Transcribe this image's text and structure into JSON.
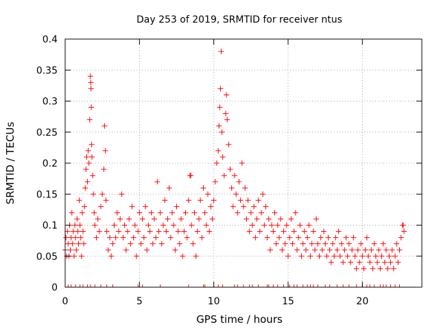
{
  "chart_data": {
    "type": "scatter",
    "title": "Day 253 of 2019, SRMTID for receiver ntus",
    "xlabel": "GPS time / hours",
    "ylabel": "SRMTID / TECUs",
    "xlim": [
      0,
      24
    ],
    "ylim": [
      0,
      0.4
    ],
    "xticks": [
      0,
      5,
      10,
      15,
      20
    ],
    "xtick_labels": [
      "0",
      "5",
      "10",
      "15",
      "20"
    ],
    "yticks": [
      0,
      0.05,
      0.1,
      0.15,
      0.2,
      0.25,
      0.3,
      0.35,
      0.4
    ],
    "ytick_labels": [
      "0",
      "0.05",
      "0.1",
      "0.15",
      "0.2",
      "0.25",
      "0.3",
      "0.35",
      "0.4"
    ],
    "grid": true,
    "marker": "plus",
    "color": "#ff0000",
    "series": [
      {
        "name": "SRMTID",
        "points": [
          [
            0.0,
            0.06
          ],
          [
            0.05,
            0.08
          ],
          [
            0.1,
            0.05
          ],
          [
            0.15,
            0.09
          ],
          [
            0.2,
            0.07
          ],
          [
            0.25,
            0.05
          ],
          [
            0.3,
            0.1
          ],
          [
            0.35,
            0.06
          ],
          [
            0.4,
            0.08
          ],
          [
            0.45,
            0.12
          ],
          [
            0.5,
            0.07
          ],
          [
            0.55,
            0.09
          ],
          [
            0.6,
            0.05
          ],
          [
            0.65,
            0.1
          ],
          [
            0.7,
            0.08
          ],
          [
            0.75,
            0.06
          ],
          [
            0.8,
            0.11
          ],
          [
            0.85,
            0.09
          ],
          [
            0.9,
            0.07
          ],
          [
            0.95,
            0.14
          ],
          [
            1.0,
            0.1
          ],
          [
            1.05,
            0.08
          ],
          [
            1.1,
            0.05
          ],
          [
            1.15,
            0.12
          ],
          [
            1.2,
            0.09
          ],
          [
            1.25,
            0.07
          ],
          [
            1.3,
            0.13
          ],
          [
            1.35,
            0.16
          ],
          [
            1.4,
            0.19
          ],
          [
            1.45,
            0.21
          ],
          [
            1.5,
            0.17
          ],
          [
            1.55,
            0.22
          ],
          [
            1.6,
            0.2
          ],
          [
            1.65,
            0.27
          ],
          [
            1.7,
            0.34
          ],
          [
            1.72,
            0.33
          ],
          [
            1.74,
            0.32
          ],
          [
            1.76,
            0.29
          ],
          [
            1.78,
            0.23
          ],
          [
            1.8,
            0.21
          ],
          [
            1.85,
            0.18
          ],
          [
            1.9,
            0.15
          ],
          [
            1.95,
            0.12
          ],
          [
            2.0,
            0.1
          ],
          [
            2.1,
            0.08
          ],
          [
            2.2,
            0.11
          ],
          [
            2.3,
            0.09
          ],
          [
            2.4,
            0.13
          ],
          [
            2.5,
            0.15
          ],
          [
            2.6,
            0.19
          ],
          [
            2.65,
            0.26
          ],
          [
            2.7,
            0.22
          ],
          [
            2.75,
            0.14
          ],
          [
            2.8,
            0.09
          ],
          [
            2.9,
            0.06
          ],
          [
            3.0,
            0.08
          ],
          [
            3.1,
            0.05
          ],
          [
            3.2,
            0.07
          ],
          [
            3.3,
            0.1
          ],
          [
            3.4,
            0.08
          ],
          [
            3.5,
            0.12
          ],
          [
            3.6,
            0.09
          ],
          [
            3.7,
            0.11
          ],
          [
            3.8,
            0.15
          ],
          [
            3.9,
            0.08
          ],
          [
            4.0,
            0.1
          ],
          [
            4.1,
            0.06
          ],
          [
            4.2,
            0.09
          ],
          [
            4.3,
            0.11
          ],
          [
            4.4,
            0.07
          ],
          [
            4.5,
            0.13
          ],
          [
            4.6,
            0.08
          ],
          [
            4.7,
            0.1
          ],
          [
            4.8,
            0.05
          ],
          [
            4.9,
            0.09
          ],
          [
            5.0,
            0.12
          ],
          [
            5.1,
            0.07
          ],
          [
            5.2,
            0.11
          ],
          [
            5.3,
            0.08
          ],
          [
            5.4,
            0.13
          ],
          [
            5.5,
            0.06
          ],
          [
            5.6,
            0.1
          ],
          [
            5.7,
            0.09
          ],
          [
            5.8,
            0.12
          ],
          [
            5.9,
            0.07
          ],
          [
            6.0,
            0.11
          ],
          [
            6.1,
            0.08
          ],
          [
            6.2,
            0.17
          ],
          [
            6.3,
            0.09
          ],
          [
            6.4,
            0.12
          ],
          [
            6.5,
            0.07
          ],
          [
            6.6,
            0.1
          ],
          [
            6.7,
            0.14
          ],
          [
            6.8,
            0.09
          ],
          [
            6.9,
            0.11
          ],
          [
            7.0,
            0.16
          ],
          [
            7.1,
            0.08
          ],
          [
            7.2,
            0.12
          ],
          [
            7.3,
            0.1
          ],
          [
            7.4,
            0.06
          ],
          [
            7.5,
            0.13
          ],
          [
            7.6,
            0.09
          ],
          [
            7.7,
            0.07
          ],
          [
            7.8,
            0.11
          ],
          [
            7.9,
            0.05
          ],
          [
            8.0,
            0.09
          ],
          [
            8.1,
            0.12
          ],
          [
            8.2,
            0.08
          ],
          [
            8.3,
            0.14
          ],
          [
            8.4,
            0.18
          ],
          [
            8.45,
            0.18
          ],
          [
            8.5,
            0.1
          ],
          [
            8.6,
            0.07
          ],
          [
            8.7,
            0.12
          ],
          [
            8.8,
            0.05
          ],
          [
            8.9,
            0.09
          ],
          [
            9.0,
            0.11
          ],
          [
            9.1,
            0.14
          ],
          [
            9.2,
            0.08
          ],
          [
            9.3,
            0.16
          ],
          [
            9.4,
            0.12
          ],
          [
            9.5,
            0.1
          ],
          [
            9.6,
            0.15
          ],
          [
            9.7,
            0.09
          ],
          [
            9.8,
            0.13
          ],
          [
            9.9,
            0.11
          ],
          [
            10.0,
            0.14
          ],
          [
            10.1,
            0.17
          ],
          [
            10.2,
            0.2
          ],
          [
            10.3,
            0.22
          ],
          [
            10.35,
            0.26
          ],
          [
            10.4,
            0.29
          ],
          [
            10.45,
            0.32
          ],
          [
            10.5,
            0.38
          ],
          [
            10.55,
            0.25
          ],
          [
            10.6,
            0.21
          ],
          [
            10.7,
            0.18
          ],
          [
            10.8,
            0.28
          ],
          [
            10.85,
            0.31
          ],
          [
            10.9,
            0.27
          ],
          [
            11.0,
            0.23
          ],
          [
            11.1,
            0.19
          ],
          [
            11.2,
            0.16
          ],
          [
            11.3,
            0.13
          ],
          [
            11.4,
            0.18
          ],
          [
            11.5,
            0.15
          ],
          [
            11.6,
            0.12
          ],
          [
            11.7,
            0.17
          ],
          [
            11.8,
            0.14
          ],
          [
            11.9,
            0.2
          ],
          [
            12.0,
            0.13
          ],
          [
            12.1,
            0.16
          ],
          [
            12.2,
            0.11
          ],
          [
            12.3,
            0.14
          ],
          [
            12.4,
            0.09
          ],
          [
            12.5,
            0.12
          ],
          [
            12.6,
            0.1
          ],
          [
            12.7,
            0.13
          ],
          [
            12.8,
            0.08
          ],
          [
            12.9,
            0.11
          ],
          [
            13.0,
            0.14
          ],
          [
            13.1,
            0.09
          ],
          [
            13.2,
            0.12
          ],
          [
            13.3,
            0.15
          ],
          [
            13.4,
            0.1
          ],
          [
            13.5,
            0.13
          ],
          [
            13.6,
            0.08
          ],
          [
            13.7,
            0.11
          ],
          [
            13.8,
            0.06
          ],
          [
            13.9,
            0.1
          ],
          [
            14.0,
            0.09
          ],
          [
            14.1,
            0.12
          ],
          [
            14.2,
            0.07
          ],
          [
            14.3,
            0.1
          ],
          [
            14.4,
            0.08
          ],
          [
            14.5,
            0.11
          ],
          [
            14.6,
            0.06
          ],
          [
            14.7,
            0.09
          ],
          [
            14.8,
            0.07
          ],
          [
            14.9,
            0.1
          ],
          [
            15.0,
            0.05
          ],
          [
            15.1,
            0.08
          ],
          [
            15.2,
            0.11
          ],
          [
            15.3,
            0.07
          ],
          [
            15.4,
            0.09
          ],
          [
            15.5,
            0.12
          ],
          [
            15.6,
            0.06
          ],
          [
            15.7,
            0.08
          ],
          [
            15.8,
            0.1
          ],
          [
            15.9,
            0.05
          ],
          [
            16.0,
            0.07
          ],
          [
            16.1,
            0.09
          ],
          [
            16.2,
            0.06
          ],
          [
            16.3,
            0.08
          ],
          [
            16.4,
            0.1
          ],
          [
            16.5,
            0.05
          ],
          [
            16.6,
            0.07
          ],
          [
            16.7,
            0.09
          ],
          [
            16.8,
            0.06
          ],
          [
            16.9,
            0.11
          ],
          [
            17.0,
            0.07
          ],
          [
            17.1,
            0.05
          ],
          [
            17.2,
            0.08
          ],
          [
            17.3,
            0.06
          ],
          [
            17.4,
            0.09
          ],
          [
            17.5,
            0.07
          ],
          [
            17.6,
            0.05
          ],
          [
            17.7,
            0.08
          ],
          [
            17.8,
            0.06
          ],
          [
            17.9,
            0.04
          ],
          [
            18.0,
            0.07
          ],
          [
            18.1,
            0.05
          ],
          [
            18.2,
            0.08
          ],
          [
            18.3,
            0.06
          ],
          [
            18.4,
            0.09
          ],
          [
            18.5,
            0.05
          ],
          [
            18.6,
            0.07
          ],
          [
            18.7,
            0.04
          ],
          [
            18.8,
            0.06
          ],
          [
            18.9,
            0.08
          ],
          [
            19.0,
            0.05
          ],
          [
            19.1,
            0.07
          ],
          [
            19.2,
            0.04
          ],
          [
            19.3,
            0.06
          ],
          [
            19.4,
            0.08
          ],
          [
            19.5,
            0.05
          ],
          [
            19.6,
            0.03
          ],
          [
            19.7,
            0.06
          ],
          [
            19.8,
            0.04
          ],
          [
            19.9,
            0.07
          ],
          [
            20.0,
            0.05
          ],
          [
            20.1,
            0.03
          ],
          [
            20.2,
            0.06
          ],
          [
            20.3,
            0.08
          ],
          [
            20.4,
            0.05
          ],
          [
            20.5,
            0.04
          ],
          [
            20.6,
            0.06
          ],
          [
            20.7,
            0.03
          ],
          [
            20.8,
            0.07
          ],
          [
            20.9,
            0.05
          ],
          [
            21.0,
            0.04
          ],
          [
            21.1,
            0.06
          ],
          [
            21.2,
            0.03
          ],
          [
            21.3,
            0.05
          ],
          [
            21.4,
            0.07
          ],
          [
            21.5,
            0.04
          ],
          [
            21.6,
            0.06
          ],
          [
            21.7,
            0.03
          ],
          [
            21.8,
            0.05
          ],
          [
            21.9,
            0.04
          ],
          [
            22.0,
            0.06
          ],
          [
            22.1,
            0.03
          ],
          [
            22.2,
            0.05
          ],
          [
            22.3,
            0.07
          ],
          [
            22.4,
            0.04
          ],
          [
            22.5,
            0.06
          ],
          [
            22.6,
            0.08
          ],
          [
            22.7,
            0.1
          ],
          [
            22.75,
            0.1
          ],
          [
            22.8,
            0.09
          ]
        ]
      }
    ],
    "zero_markers_x": [
      0.2,
      0.4,
      0.7,
      1.0,
      1.2,
      1.5,
      1.7,
      2.0,
      2.4,
      2.8,
      3.2,
      4.9,
      5.2,
      6.4,
      8.3,
      9.3,
      9.4,
      10.3,
      10.6,
      11.4,
      11.6,
      12.0,
      12.4,
      12.6,
      13.0,
      13.6,
      13.7,
      14.0,
      14.3,
      14.7,
      15.1,
      15.4,
      15.6,
      16.0,
      16.3,
      16.5,
      16.7,
      17.0,
      17.5,
      17.8,
      18.3,
      18.7,
      19.1,
      19.6,
      20.0,
      20.3,
      20.5,
      20.8,
      21.2,
      21.4,
      21.6,
      21.9,
      22.2,
      22.5
    ]
  }
}
